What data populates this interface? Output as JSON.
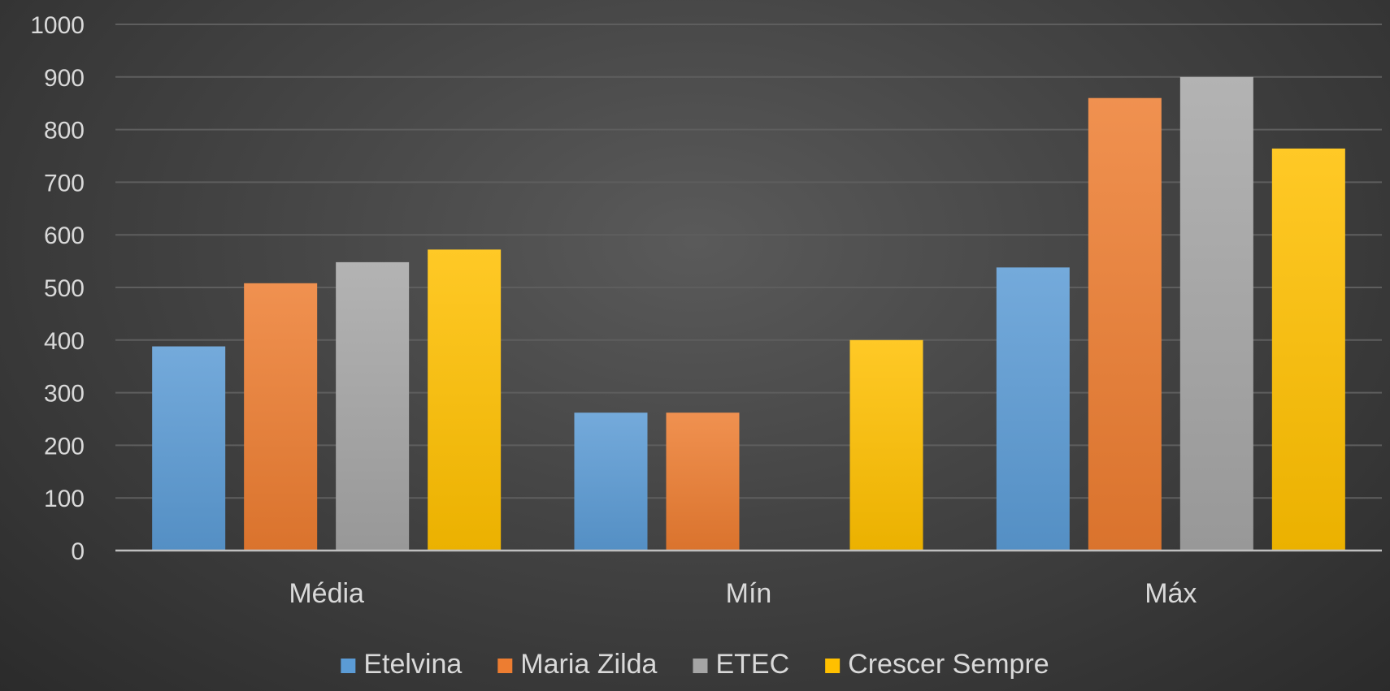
{
  "chart_data": {
    "type": "bar",
    "categories": [
      "Média",
      "Mín",
      "Máx"
    ],
    "series": [
      {
        "name": "Etelvina",
        "values": [
          388,
          262,
          538
        ],
        "color": "#5b9bd5"
      },
      {
        "name": "Maria Zilda",
        "values": [
          508,
          262,
          860
        ],
        "color": "#ed7d31"
      },
      {
        "name": "ETEC",
        "values": [
          548,
          0,
          900
        ],
        "color": "#a5a5a5"
      },
      {
        "name": "Crescer Sempre",
        "values": [
          572,
          400,
          764
        ],
        "color": "#ffc000"
      }
    ],
    "ylim": [
      0,
      1000
    ],
    "yticks": [
      0,
      100,
      200,
      300,
      400,
      500,
      600,
      700,
      800,
      900,
      1000
    ],
    "grid": true,
    "legend_position": "bottom",
    "xlabel": "",
    "ylabel": "",
    "title": ""
  }
}
